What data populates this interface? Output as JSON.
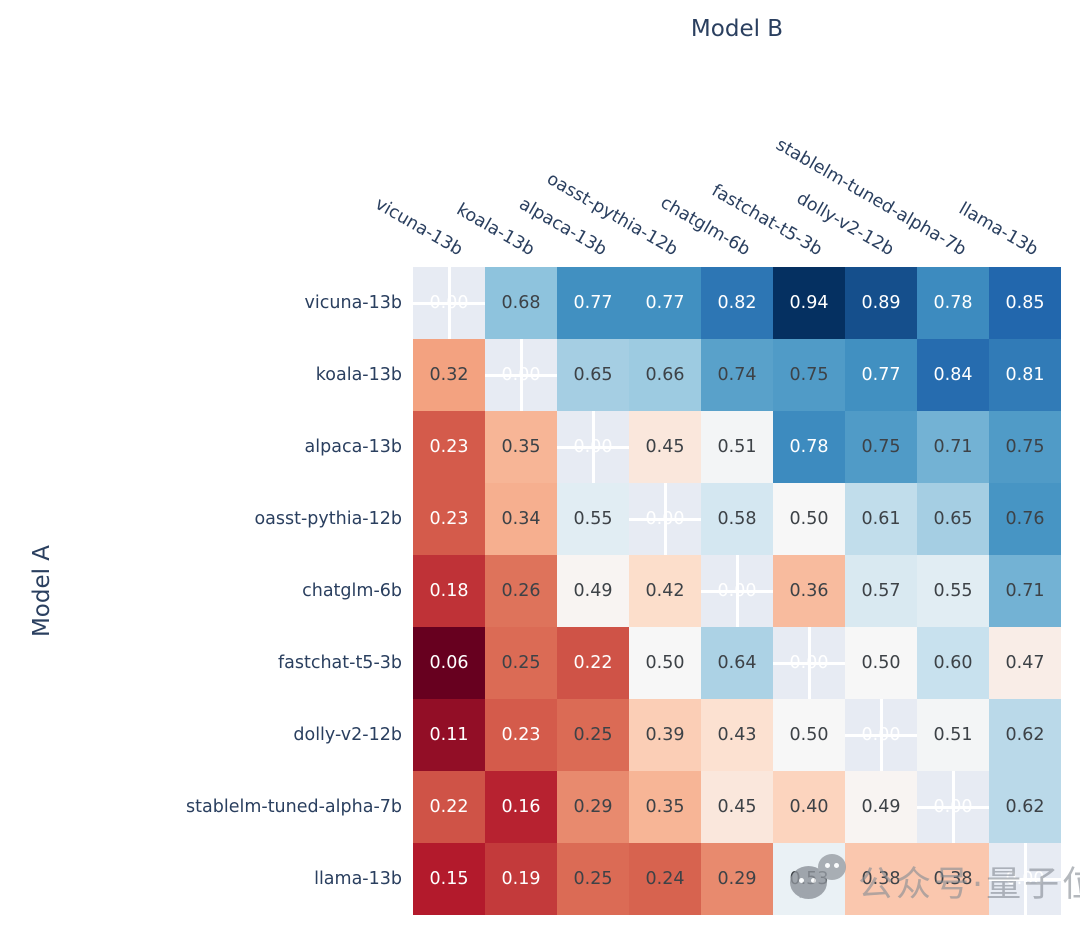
{
  "figure": {
    "x_axis_title": "Model B",
    "y_axis_title": "Model A",
    "watermark": {
      "icon": "wechat-chat-bubbles-icon",
      "text": "公众号·量子位"
    }
  },
  "chart_data": {
    "type": "heatmap",
    "title": "",
    "xlabel": "Model B",
    "ylabel": "Model A",
    "x_categories": [
      "vicuna-13b",
      "koala-13b",
      "alpaca-13b",
      "oasst-pythia-12b",
      "chatglm-6b",
      "fastchat-t5-3b",
      "dolly-v2-12b",
      "stablelm-tuned-alpha-7b",
      "llama-13b"
    ],
    "y_categories": [
      "vicuna-13b",
      "koala-13b",
      "alpaca-13b",
      "oasst-pythia-12b",
      "chatglm-6b",
      "fastchat-t5-3b",
      "dolly-v2-12b",
      "stablelm-tuned-alpha-7b",
      "llama-13b"
    ],
    "matrix": [
      [
        0.0,
        0.68,
        0.77,
        0.77,
        0.82,
        0.94,
        0.89,
        0.78,
        0.85
      ],
      [
        0.32,
        0.0,
        0.65,
        0.66,
        0.74,
        0.75,
        0.77,
        0.84,
        0.81
      ],
      [
        0.23,
        0.35,
        0.0,
        0.45,
        0.51,
        0.78,
        0.75,
        0.71,
        0.75
      ],
      [
        0.23,
        0.34,
        0.55,
        0.0,
        0.58,
        0.5,
        0.61,
        0.65,
        0.76
      ],
      [
        0.18,
        0.26,
        0.49,
        0.42,
        0.0,
        0.36,
        0.57,
        0.55,
        0.71
      ],
      [
        0.06,
        0.25,
        0.22,
        0.5,
        0.64,
        0.0,
        0.5,
        0.6,
        0.47
      ],
      [
        0.11,
        0.23,
        0.25,
        0.39,
        0.43,
        0.5,
        0.0,
        0.51,
        0.62
      ],
      [
        0.22,
        0.16,
        0.29,
        0.35,
        0.45,
        0.4,
        0.49,
        0.0,
        0.62
      ],
      [
        0.15,
        0.19,
        0.25,
        0.24,
        0.29,
        0.53,
        0.38,
        0.38,
        0.0
      ]
    ],
    "diagonal_is_self_match": true,
    "value_format": "0.00",
    "zmin": 0.06,
    "zmax": 0.94,
    "colorscale_name": "RdBu",
    "colorscale_stops": [
      "#67001f",
      "#b2182b",
      "#d6604d",
      "#f4a582",
      "#fddbc7",
      "#f7f7f7",
      "#d1e5f0",
      "#92c5de",
      "#4393c3",
      "#2166ac",
      "#053061"
    ],
    "axis_label_color": "#2a3f5f",
    "cell_text_dark": "#3d4247",
    "cell_text_light": "#ffffff",
    "diagonal_bg": "#e7ebf3",
    "gridline_color": "#ffffff",
    "legend_position": "none",
    "grid": false
  }
}
